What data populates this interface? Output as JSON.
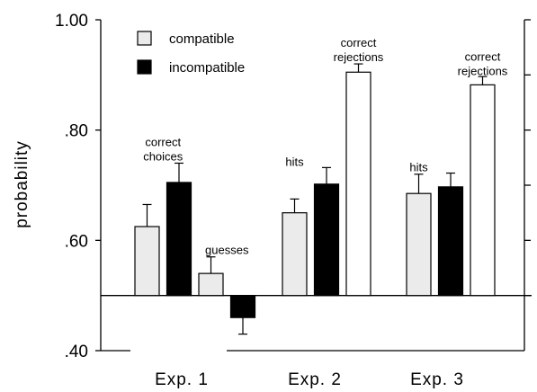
{
  "chart_data": {
    "type": "bar",
    "ylabel": "probability",
    "ylim": [
      0.4,
      1.0
    ],
    "baseline": 0.5,
    "y_ticks": [
      {
        "value": 1.0,
        "label": "1.00"
      },
      {
        "value": 0.8,
        "label": ".80"
      },
      {
        "value": 0.6,
        "label": ".60"
      },
      {
        "value": 0.4,
        "label": ".40"
      }
    ],
    "groups": [
      {
        "label": "Exp. 1",
        "center": 1
      },
      {
        "label": "Exp. 2",
        "center": 2
      },
      {
        "label": "Exp. 3",
        "center": 3
      }
    ],
    "legend": {
      "placement": "top-left",
      "entries": [
        {
          "label": "compatible",
          "color": "#ebebeb"
        },
        {
          "label": "incompatible",
          "color": "#000000"
        }
      ]
    },
    "series_colors": {
      "compatible": "#ebebeb",
      "incompatible": "#000000",
      "other": "#ffffff"
    },
    "bars": [
      {
        "group": 0,
        "slot": 0,
        "series": "compatible",
        "value": 0.625,
        "error": 0.04
      },
      {
        "group": 0,
        "slot": 1,
        "series": "incompatible",
        "value": 0.705,
        "error": 0.035
      },
      {
        "group": 0,
        "slot": 2,
        "series": "compatible",
        "value": 0.54,
        "error": 0.03
      },
      {
        "group": 0,
        "slot": 3,
        "series": "incompatible",
        "value": 0.46,
        "error": 0.03
      },
      {
        "group": 1,
        "slot": 0,
        "series": "compatible",
        "value": 0.65,
        "error": 0.025
      },
      {
        "group": 1,
        "slot": 1,
        "series": "incompatible",
        "value": 0.702,
        "error": 0.03
      },
      {
        "group": 1,
        "slot": 2,
        "series": "other",
        "value": 0.905,
        "error": 0.015
      },
      {
        "group": 2,
        "slot": 0,
        "series": "compatible",
        "value": 0.685,
        "error": 0.035
      },
      {
        "group": 2,
        "slot": 1,
        "series": "incompatible",
        "value": 0.697,
        "error": 0.025
      },
      {
        "group": 2,
        "slot": 2,
        "series": "other",
        "value": 0.882,
        "error": 0.015
      }
    ],
    "annotations": [
      {
        "lines": [
          "correct",
          "choices"
        ],
        "group": 0,
        "slot": 0.5,
        "above": 0.745
      },
      {
        "lines": [
          "guesses"
        ],
        "group": 0,
        "slot": 2.5,
        "above": 0.575
      },
      {
        "lines": [
          "hits"
        ],
        "group": 1,
        "slot": 0.0,
        "above": 0.735
      },
      {
        "lines": [
          "correct",
          "rejections"
        ],
        "group": 1,
        "slot": 2.0,
        "above": 0.925
      },
      {
        "lines": [
          "hits"
        ],
        "group": 2,
        "slot": 0.0,
        "above": 0.725
      },
      {
        "lines": [
          "correct",
          "rejections"
        ],
        "group": 2,
        "slot": 2.0,
        "above": 0.9
      }
    ]
  }
}
